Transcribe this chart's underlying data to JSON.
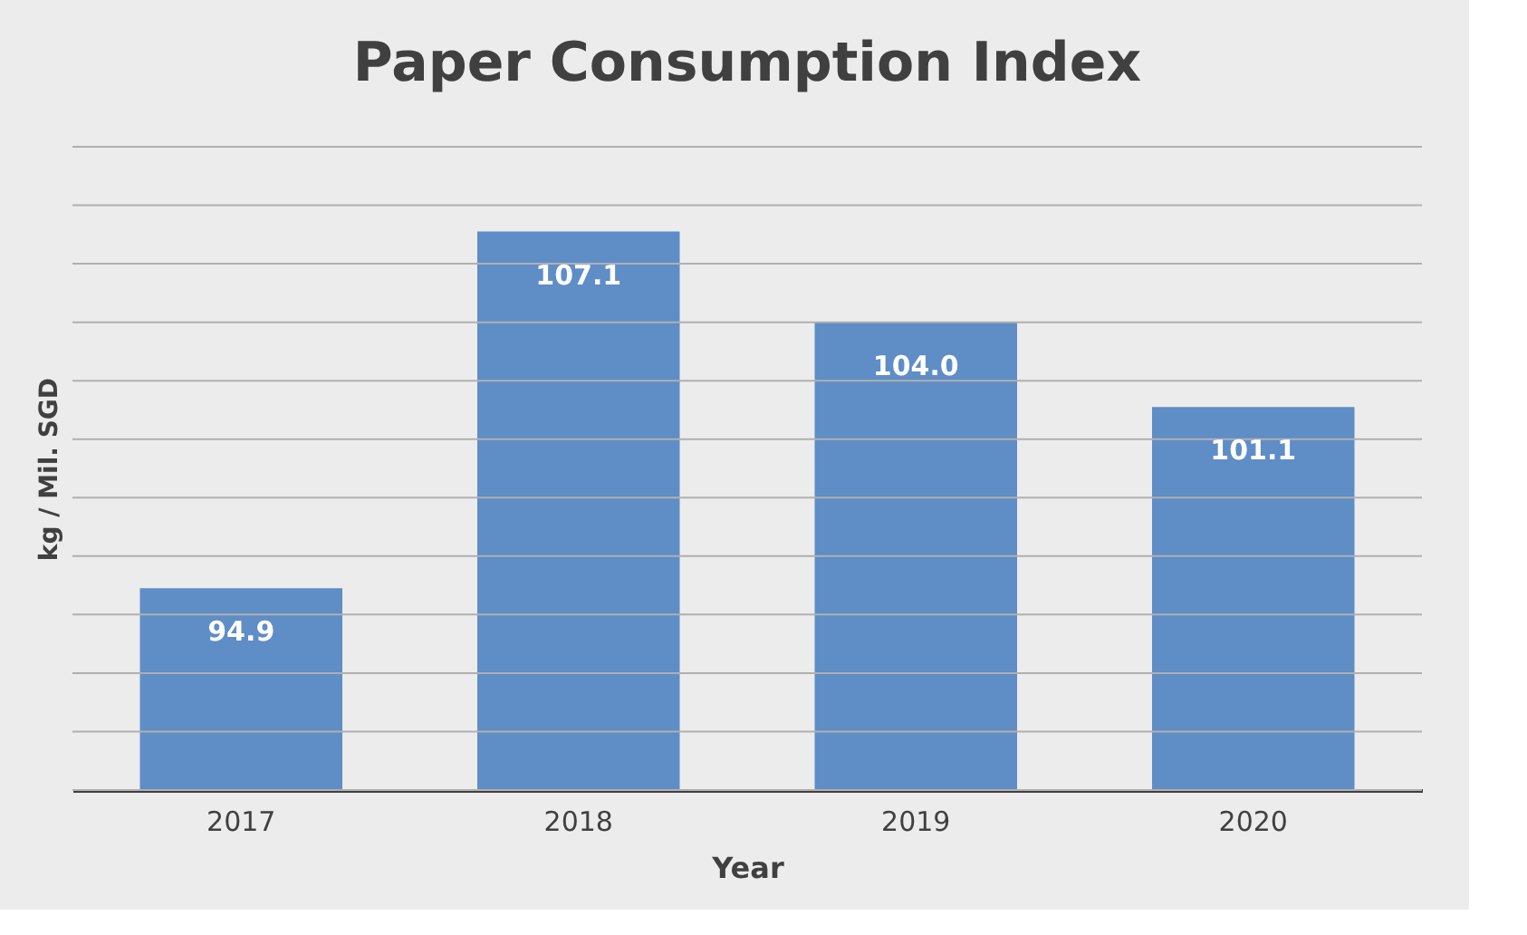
{
  "chart_data": {
    "type": "bar",
    "title": "Paper Consumption Index",
    "xlabel": "Year",
    "ylabel": "kg / Mil. SGD",
    "categories": [
      "2017",
      "2018",
      "2019",
      "2020"
    ],
    "values": [
      94.9,
      107.1,
      104.0,
      101.1
    ],
    "value_labels": [
      "94.9",
      "107.1",
      "104.0",
      "101.1"
    ],
    "color": "#5f8dc6",
    "ylim": [
      88,
      110
    ],
    "yticks": [
      {
        "value": 88,
        "label": null
      },
      {
        "value": 90,
        "label": null
      },
      {
        "value": 92,
        "label": null
      },
      {
        "value": 94,
        "label": null
      },
      {
        "value": 96,
        "label": null
      },
      {
        "value": 98,
        "label": null
      },
      {
        "value": 100,
        "label": null
      },
      {
        "value": 102,
        "label": null
      },
      {
        "value": 104,
        "label": null
      },
      {
        "value": 106,
        "label": null
      },
      {
        "value": 108,
        "label": null
      },
      {
        "value": 110,
        "label": null
      }
    ],
    "grid": "y",
    "tick_labels": "x"
  }
}
